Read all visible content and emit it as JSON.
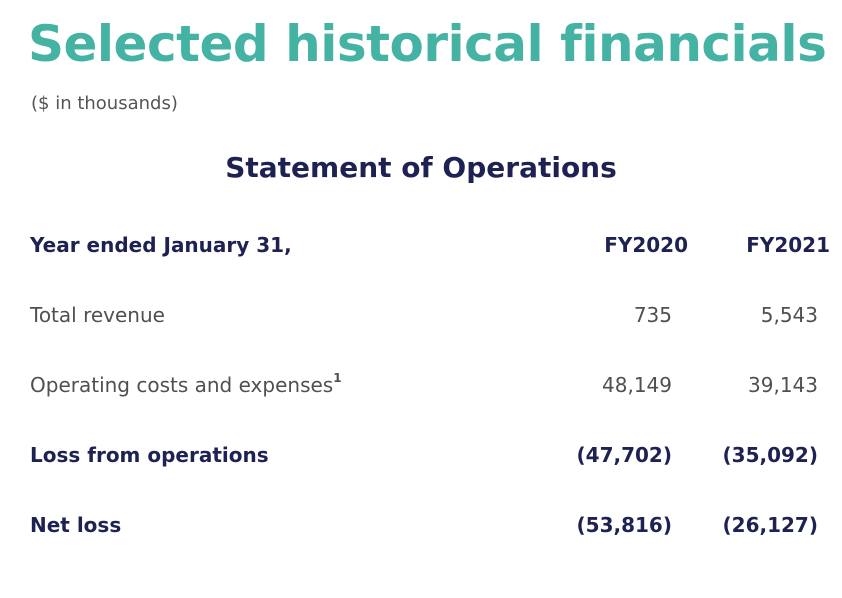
{
  "title": "Selected historical financials",
  "subtitle": "($ in thousands)",
  "section_heading": "Statement of Operations",
  "table": {
    "header": {
      "label": "Year ended January 31,",
      "fy2020": "FY2020",
      "fy2021": "FY2021"
    },
    "rows": [
      {
        "label": "Total revenue",
        "footnote": "",
        "fy2020": "735",
        "fy2021": "5,543",
        "bold": false
      },
      {
        "label": "Operating costs and expenses",
        "footnote": "1",
        "fy2020": "48,149",
        "fy2021": "39,143",
        "bold": false
      },
      {
        "label": "Loss from operations",
        "footnote": "",
        "fy2020": "(47,702)",
        "fy2021": "(35,092)",
        "bold": true
      },
      {
        "label": "Net loss",
        "footnote": "",
        "fy2020": "(53,816)",
        "fy2021": "(26,127)",
        "bold": true
      }
    ]
  },
  "colors": {
    "title": "#45b3a4",
    "heading": "#1e2252",
    "body_text": "#505050"
  }
}
